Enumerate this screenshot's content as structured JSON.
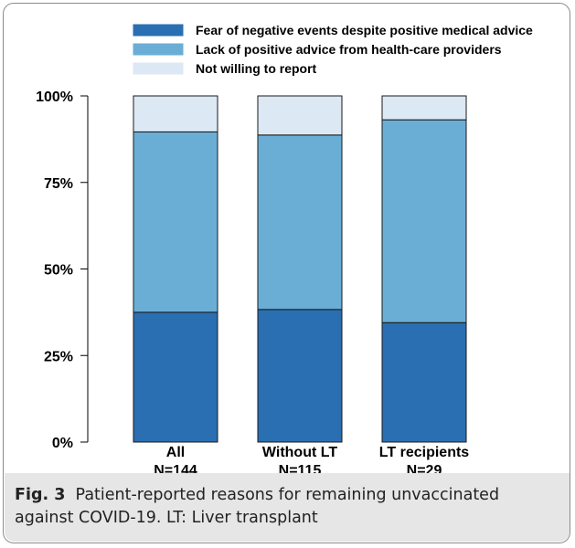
{
  "figure": {
    "caption_label": "Fig. 3",
    "caption_text": "Patient-reported reasons for remaining unvaccinated against COVID-19. LT: Liver transplant"
  },
  "chart_data": {
    "type": "bar",
    "stacked": true,
    "orientation": "vertical",
    "categories": [
      "All\nN=144",
      "Without LT\nN=115",
      "LT recipients\nN=29"
    ],
    "series": [
      {
        "name": "Fear of negative events despite positive medical advice",
        "color": "#2a6fb2",
        "values": [
          37.5,
          38.3,
          34.5
        ]
      },
      {
        "name": "Lack of positive advice from health-care providers",
        "color": "#6aaed6",
        "values": [
          52.1,
          50.4,
          58.6
        ]
      },
      {
        "name": "Not willing to report",
        "color": "#dce8f4",
        "values": [
          10.4,
          11.3,
          6.9
        ]
      }
    ],
    "ylim": [
      0,
      100
    ],
    "yticks": [
      "0%",
      "25%",
      "50%",
      "75%",
      "100%"
    ],
    "ytick_values": [
      0,
      25,
      50,
      75,
      100
    ],
    "xlabel": "",
    "ylabel": "",
    "grid": false,
    "legend": "top"
  }
}
